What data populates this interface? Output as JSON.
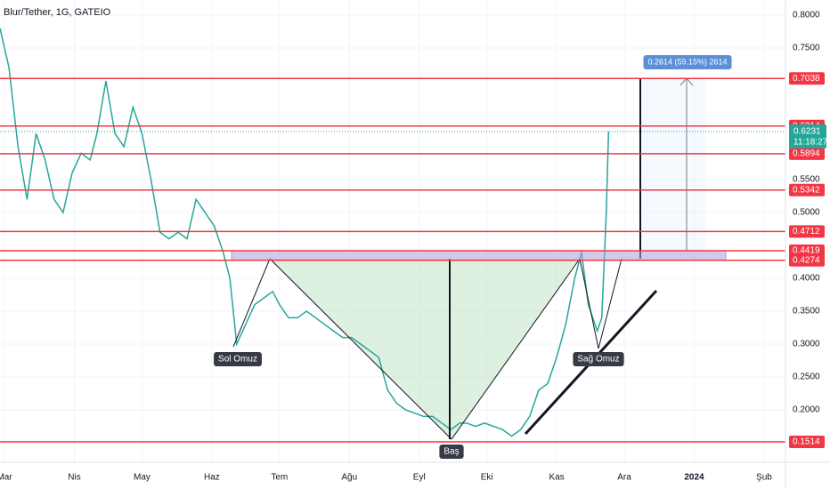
{
  "chart_data": {
    "type": "line",
    "title": "Blur/Tether, 1G, GATEIO",
    "x": [
      -2,
      2,
      6,
      10,
      14,
      18,
      22,
      26,
      30,
      34,
      38,
      41,
      45,
      49,
      53,
      57,
      61,
      65,
      69,
      73,
      77,
      81,
      85,
      89,
      93,
      97,
      100,
      103,
      107,
      111,
      115,
      119,
      122,
      126,
      130,
      134,
      138,
      142,
      146,
      150,
      154,
      158,
      162,
      166,
      170,
      174,
      178,
      182,
      186,
      190,
      194,
      198,
      202,
      205,
      209,
      213,
      217,
      221,
      225,
      229,
      233,
      237,
      241,
      245,
      249,
      253,
      256,
      259,
      263,
      265,
      267,
      268
    ],
    "values": [
      0.78,
      0.72,
      0.6,
      0.52,
      0.62,
      0.58,
      0.52,
      0.5,
      0.56,
      0.59,
      0.58,
      0.62,
      0.7,
      0.62,
      0.6,
      0.66,
      0.62,
      0.55,
      0.47,
      0.46,
      0.47,
      0.46,
      0.52,
      0.5,
      0.48,
      0.44,
      0.4,
      0.3,
      0.33,
      0.36,
      0.37,
      0.38,
      0.36,
      0.34,
      0.34,
      0.35,
      0.34,
      0.33,
      0.32,
      0.31,
      0.31,
      0.3,
      0.29,
      0.28,
      0.23,
      0.21,
      0.2,
      0.195,
      0.19,
      0.19,
      0.18,
      0.17,
      0.18,
      0.18,
      0.175,
      0.18,
      0.175,
      0.17,
      0.16,
      0.17,
      0.19,
      0.23,
      0.24,
      0.28,
      0.33,
      0.4,
      0.44,
      0.36,
      0.32,
      0.34,
      0.5,
      0.6231
    ],
    "color": "#26a69a",
    "xlim": [
      -2,
      346.5
    ],
    "xticks": [
      {
        "value": 0,
        "label": "Mar"
      },
      {
        "value": 31,
        "label": "Nis"
      },
      {
        "value": 61,
        "label": "May"
      },
      {
        "value": 92,
        "label": "Haz"
      },
      {
        "value": 122,
        "label": "Tem"
      },
      {
        "value": 153,
        "label": "Ağu"
      },
      {
        "value": 184,
        "label": "Eyl"
      },
      {
        "value": 214,
        "label": "Eki"
      },
      {
        "value": 245,
        "label": "Kas"
      },
      {
        "value": 275,
        "label": "Ara"
      },
      {
        "value": 306,
        "label": "2024"
      },
      {
        "value": 337,
        "label": "Şub"
      }
    ],
    "ylim": [
      0.1203,
      0.823
    ],
    "yticks": [
      {
        "value": 0.8,
        "label": "0.8000"
      },
      {
        "value": 0.75,
        "label": "0.7500"
      },
      {
        "value": 0.55,
        "label": "0.5500"
      },
      {
        "value": 0.5,
        "label": "0.5000"
      },
      {
        "value": 0.4,
        "label": "0.4000"
      },
      {
        "value": 0.35,
        "label": "0.3500"
      },
      {
        "value": 0.3,
        "label": "0.3000"
      },
      {
        "value": 0.25,
        "label": "0.2500"
      },
      {
        "value": 0.2,
        "label": "0.2000"
      }
    ],
    "grid": true,
    "levels": [
      0.7038,
      0.6314,
      0.5894,
      0.5342,
      0.4712,
      0.4419,
      0.4274,
      0.1514
    ],
    "level_color": "#f23645",
    "zone_color": "#b39ddb",
    "last_price": 0.6231,
    "countdown": "11:18:27",
    "annotations": [
      "Sol Omuz",
      "Baş",
      "Sağ Omuz",
      "0.2614 (59.15%) 2614"
    ]
  }
}
